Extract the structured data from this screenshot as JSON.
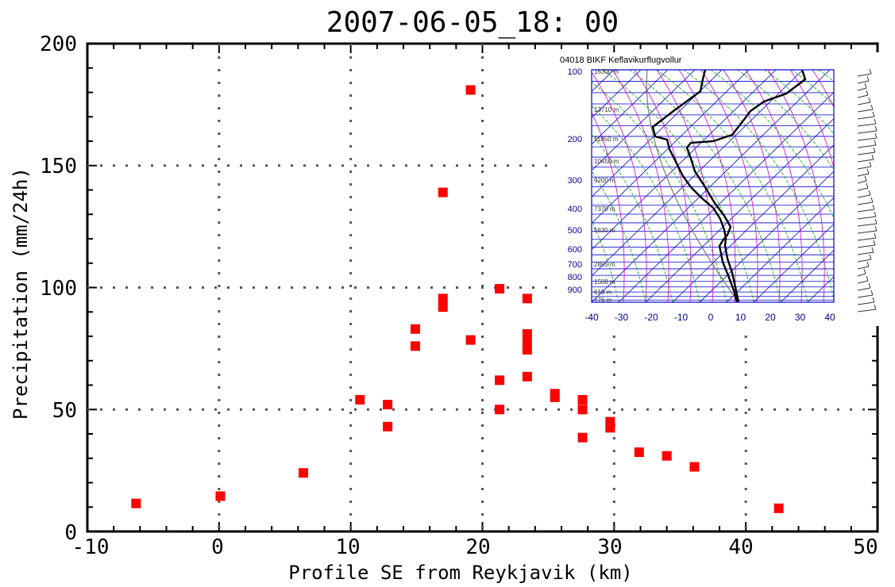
{
  "chart_data": {
    "type": "scatter",
    "title": "2007-06-05_18: 00",
    "xlabel": "Profile SE from Reykjavik (km)",
    "ylabel": "Precipitation (mm/24h)",
    "xlim": [
      -10,
      50
    ],
    "ylim": [
      0,
      200
    ],
    "x_ticks": [
      "-10",
      "0",
      "10",
      "20",
      "30",
      "40",
      "50"
    ],
    "y_ticks": [
      "0",
      "50",
      "100",
      "150",
      "200"
    ],
    "grid": "dotted",
    "marker_color": "#ff0000",
    "series": [
      {
        "points": [
          {
            "x": -6.3,
            "y": 11.5
          },
          {
            "x": 0.1,
            "y": 14.5
          },
          {
            "x": 6.4,
            "y": 24.0
          },
          {
            "x": 10.7,
            "y": 54.0
          },
          {
            "x": 12.8,
            "y": 52.0
          },
          {
            "x": 12.8,
            "y": 43.0
          },
          {
            "x": 14.9,
            "y": 83.0
          },
          {
            "x": 14.9,
            "y": 76.0
          },
          {
            "x": 17.0,
            "y": 139.0
          },
          {
            "x": 17.0,
            "y": 95.5
          },
          {
            "x": 17.0,
            "y": 92.0
          },
          {
            "x": 19.1,
            "y": 181.0
          },
          {
            "x": 19.1,
            "y": 78.5
          },
          {
            "x": 21.3,
            "y": 99.5
          },
          {
            "x": 21.3,
            "y": 62.0
          },
          {
            "x": 21.3,
            "y": 50.0
          },
          {
            "x": 23.4,
            "y": 95.5
          },
          {
            "x": 23.4,
            "y": 81.0
          },
          {
            "x": 23.4,
            "y": 77.5
          },
          {
            "x": 23.4,
            "y": 74.5
          },
          {
            "x": 23.4,
            "y": 63.5
          },
          {
            "x": 25.5,
            "y": 56.5
          },
          {
            "x": 25.5,
            "y": 55.0
          },
          {
            "x": 27.6,
            "y": 54.0
          },
          {
            "x": 27.6,
            "y": 50.0
          },
          {
            "x": 27.6,
            "y": 38.5
          },
          {
            "x": 29.7,
            "y": 45.0
          },
          {
            "x": 29.7,
            "y": 42.5
          },
          {
            "x": 31.9,
            "y": 32.5
          },
          {
            "x": 34.0,
            "y": 31.0
          },
          {
            "x": 36.1,
            "y": 26.5
          },
          {
            "x": 42.5,
            "y": 9.5
          }
        ]
      }
    ]
  },
  "inset": {
    "station_label": "04018 BIKF Keflavikurflugvollur",
    "pressure_labels": [
      "100",
      "200",
      "300",
      "400",
      "500",
      "600",
      "700",
      "800",
      "900"
    ],
    "height_labels": [
      "16300 m",
      "13710 m",
      "11850 m",
      "10450 m",
      "9200 m",
      "7370 m",
      "5630 m",
      "2855 m",
      "1508 m",
      "619 m",
      "176 m"
    ],
    "temp_ticks": [
      "-40",
      "-30",
      "-20",
      "-10",
      "0",
      "10",
      "20",
      "30",
      "40"
    ],
    "colors": {
      "axis_text": "#00008b",
      "isobar": "#0000cc",
      "dry_adiabat": "#00aa00",
      "moist_adiabat": "#cc00cc",
      "profile": "#000000"
    }
  }
}
